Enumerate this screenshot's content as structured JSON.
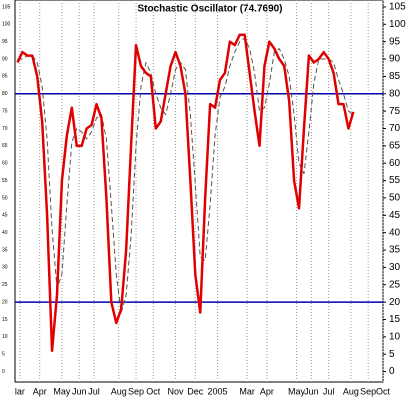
{
  "chart_data": {
    "type": "line",
    "title": "Stochastic Oscillator (74.7690)",
    "xlim": [
      -0.5,
      74
    ],
    "xticks": [
      {
        "value": 0.5,
        "label": "lar"
      },
      {
        "value": 4.5,
        "label": "Apr"
      },
      {
        "value": 9,
        "label": "May"
      },
      {
        "value": 12.5,
        "label": "Jun"
      },
      {
        "value": 15.5,
        "label": "Jul"
      },
      {
        "value": 20.5,
        "label": "Aug"
      },
      {
        "value": 24,
        "label": "Sep"
      },
      {
        "value": 27.5,
        "label": "Oct"
      },
      {
        "value": 32,
        "label": "Nov"
      },
      {
        "value": 36,
        "label": "Dec"
      },
      {
        "value": 40.5,
        "label": "2005"
      },
      {
        "value": 46.5,
        "label": "Mar"
      },
      {
        "value": 50.5,
        "label": "Apr"
      },
      {
        "value": 56.5,
        "label": "May"
      },
      {
        "value": 59.5,
        "label": "Jun"
      },
      {
        "value": 63,
        "label": "Jul"
      },
      {
        "value": 67.5,
        "label": "Aug"
      },
      {
        "value": 71,
        "label": "Sep"
      },
      {
        "value": 74,
        "label": "Oct"
      }
    ],
    "ylim": [
      -3,
      107
    ],
    "yticks": [
      0,
      5,
      10,
      15,
      20,
      25,
      30,
      35,
      40,
      45,
      50,
      55,
      60,
      65,
      70,
      75,
      80,
      85,
      90,
      95,
      100,
      105
    ],
    "hlines": [
      80,
      20
    ],
    "hline_color": "#0000b0",
    "grid": true,
    "series": [
      {
        "color": "#e00000",
        "style": "solid",
        "values": [
          89,
          92,
          91,
          91,
          85,
          72,
          45,
          6,
          22,
          55,
          68,
          76,
          65,
          65,
          70,
          71,
          77,
          73,
          50,
          20,
          14,
          18,
          35,
          65,
          94,
          88,
          86,
          85,
          70,
          72,
          80,
          88,
          92,
          88,
          80,
          55,
          28,
          17,
          50,
          77,
          76,
          84,
          86,
          95,
          94,
          97,
          97,
          86,
          75,
          65,
          88,
          95,
          93,
          90,
          88,
          78,
          55,
          47,
          70,
          91,
          89,
          90,
          92,
          90,
          86,
          77,
          77,
          70,
          74.769
        ]
      },
      {
        "color": "#555555",
        "style": "dashed",
        "values": [
          90,
          90,
          91,
          91,
          89,
          82,
          67,
          41,
          24,
          28,
          48,
          66,
          70,
          69,
          67,
          69,
          73,
          74,
          67,
          48,
          28,
          17,
          22,
          39,
          65,
          82,
          89,
          86,
          80,
          76,
          74,
          80,
          87,
          89,
          87,
          74,
          54,
          33,
          32,
          48,
          68,
          79,
          82,
          88,
          92,
          95,
          96,
          93,
          86,
          75,
          76,
          83,
          92,
          93,
          90,
          85,
          74,
          60,
          57,
          69,
          83,
          90,
          90,
          90,
          89,
          84,
          80,
          75,
          74
        ]
      }
    ]
  }
}
